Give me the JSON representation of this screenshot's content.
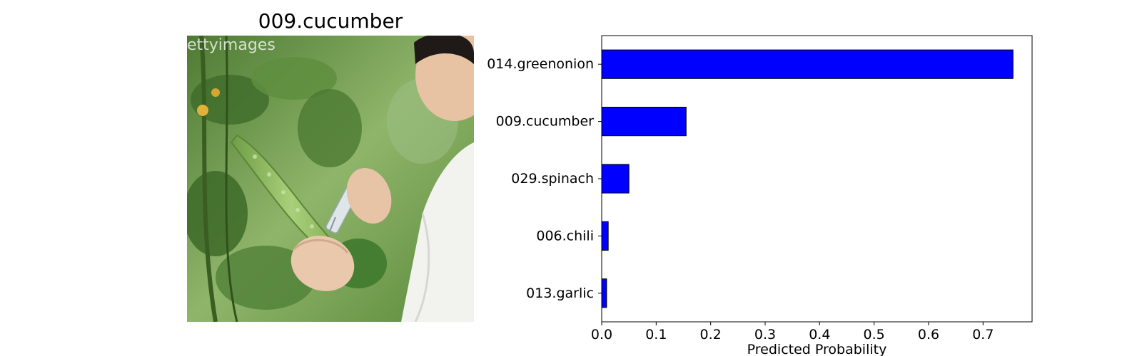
{
  "image_panel": {
    "title": "009.cucumber",
    "watermark": "ettyimages"
  },
  "chart_data": {
    "type": "bar",
    "orientation": "horizontal",
    "categories": [
      "014.greenonion",
      "009.cucumber",
      "029.spinach",
      "006.chili",
      "013.garlic"
    ],
    "values": [
      0.755,
      0.155,
      0.05,
      0.012,
      0.009
    ],
    "xlabel": "Predicted Probability",
    "xlim": [
      0.0,
      0.79
    ],
    "xticks": [
      "0.0",
      "0.1",
      "0.2",
      "0.3",
      "0.4",
      "0.5",
      "0.6",
      "0.7"
    ],
    "grid": false,
    "bar_color": "#0000ff",
    "edge_color": "#000000"
  }
}
